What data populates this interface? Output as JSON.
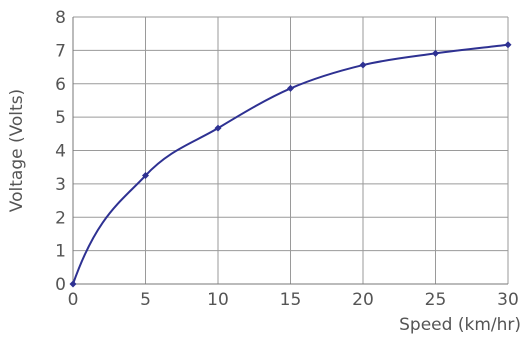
{
  "chart_data": {
    "type": "line",
    "title": "",
    "xlabel": "Speed (km/hr)",
    "ylabel": "Voltage (Volts)",
    "xlim": [
      0,
      30
    ],
    "ylim": [
      0,
      8
    ],
    "x_ticks": [
      0,
      5,
      10,
      15,
      20,
      25,
      30
    ],
    "y_ticks": [
      0,
      1,
      2,
      3,
      4,
      5,
      6,
      7,
      8
    ],
    "grid": true,
    "legend": "none",
    "series": [
      {
        "color": "#2e3192",
        "x": [
          0,
          5,
          10,
          15,
          20,
          25,
          30
        ],
        "y": [
          0,
          3.25,
          4.67,
          5.86,
          6.56,
          6.91,
          7.17
        ]
      }
    ]
  }
}
